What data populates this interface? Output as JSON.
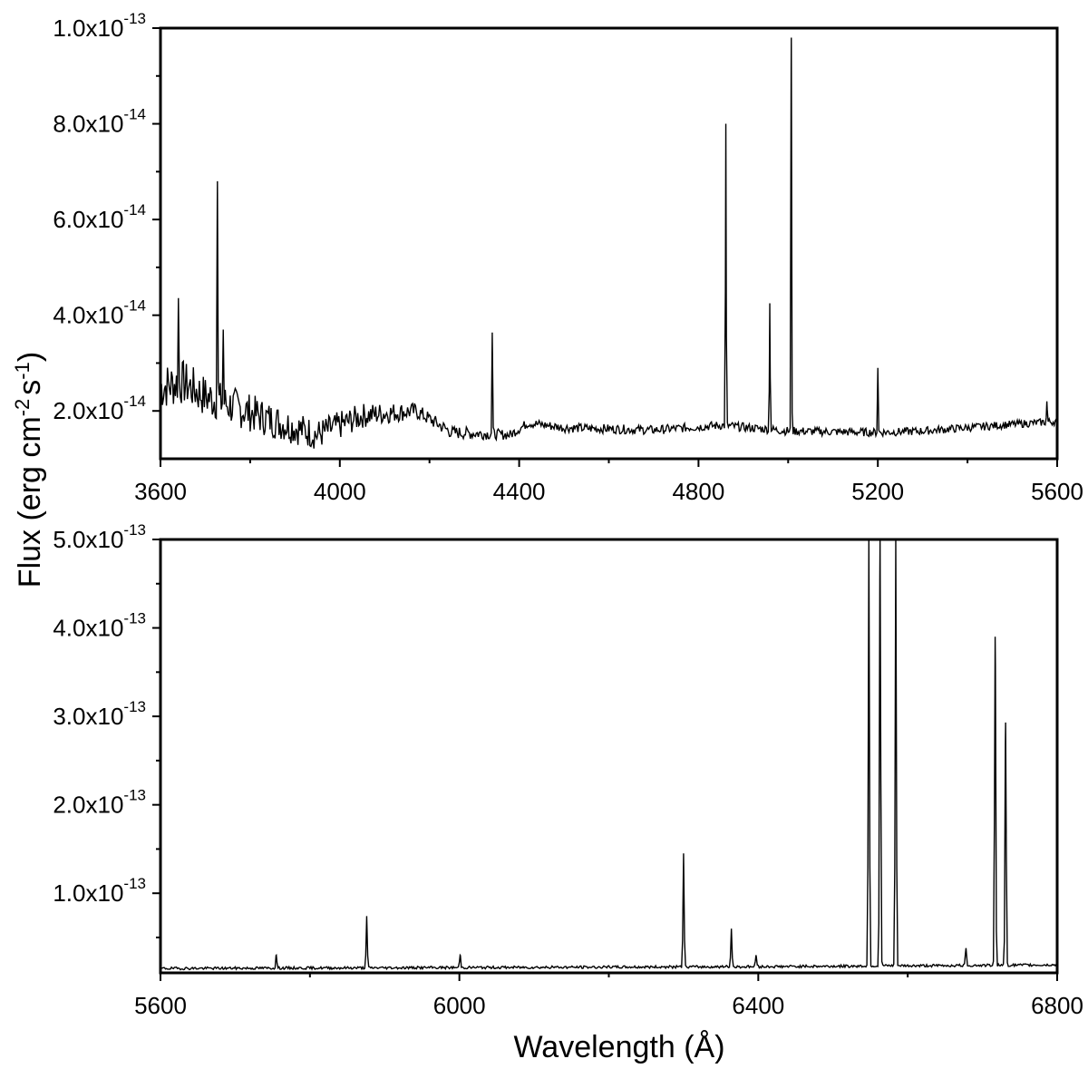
{
  "figure": {
    "ylabel_main": "Flux (erg cm",
    "ylabel_exp1": "-2",
    "ylabel_mid": "s",
    "ylabel_exp2": "-1",
    "ylabel_end": ")",
    "xlabel": "Wavelength (Å)"
  },
  "chart_data": [
    {
      "type": "line",
      "panel": "top",
      "xlabel": "",
      "ylabel": "Flux (erg cm-2 s-1)",
      "xlim": [
        3600,
        5600
      ],
      "ylim": [
        1e-14,
        1e-13
      ],
      "grid": false,
      "xticks": [
        {
          "value": 3600,
          "label": "3600"
        },
        {
          "value": 4000,
          "label": "4000"
        },
        {
          "value": 4400,
          "label": "4400"
        },
        {
          "value": 4800,
          "label": "4800"
        },
        {
          "value": 5200,
          "label": "5200"
        },
        {
          "value": 5600,
          "label": "5600"
        }
      ],
      "yticks": [
        {
          "value": 2e-14,
          "mantissa": "2.0x10",
          "exponent": "-14"
        },
        {
          "value": 4e-14,
          "mantissa": "4.0x10",
          "exponent": "-14"
        },
        {
          "value": 6e-14,
          "mantissa": "6.0x10",
          "exponent": "-14"
        },
        {
          "value": 8e-14,
          "mantissa": "8.0x10",
          "exponent": "-14"
        },
        {
          "value": 1e-13,
          "mantissa": "1.0x10",
          "exponent": "-13"
        }
      ],
      "continuum": [
        [
          3600,
          2.5e-14
        ],
        [
          3650,
          2.6e-14
        ],
        [
          3700,
          2.3e-14
        ],
        [
          3760,
          2.1e-14
        ],
        [
          3850,
          1.8e-14
        ],
        [
          3950,
          1.5e-14
        ],
        [
          4050,
          1.9e-14
        ],
        [
          4100,
          1.95e-14
        ],
        [
          4170,
          2e-14
        ],
        [
          4250,
          1.55e-14
        ],
        [
          4380,
          1.5e-14
        ],
        [
          4420,
          1.75e-14
        ],
        [
          4500,
          1.65e-14
        ],
        [
          4700,
          1.6e-14
        ],
        [
          4850,
          1.7e-14
        ],
        [
          5000,
          1.58e-14
        ],
        [
          5200,
          1.55e-14
        ],
        [
          5300,
          1.58e-14
        ],
        [
          5400,
          1.65e-14
        ],
        [
          5500,
          1.72e-14
        ],
        [
          5600,
          1.78e-14
        ]
      ],
      "noise": [
        [
          3600,
          5e-15
        ],
        [
          3800,
          4e-15
        ],
        [
          4000,
          3e-15
        ],
        [
          4200,
          1.5e-15
        ],
        [
          4400,
          1e-15
        ],
        [
          5600,
          8e-16
        ]
      ],
      "lines": [
        {
          "x": 3640,
          "peak": 4.3e-14
        },
        {
          "x": 3727,
          "peak": 6.8e-14
        },
        {
          "x": 3740,
          "peak": 3.7e-14
        },
        {
          "x": 4340,
          "peak": 3.6e-14
        },
        {
          "x": 4861,
          "peak": 8e-14
        },
        {
          "x": 4959,
          "peak": 4.25e-14
        },
        {
          "x": 5007,
          "peak": 9.8e-14
        },
        {
          "x": 5200,
          "peak": 2.9e-14
        },
        {
          "x": 5577,
          "peak": 2.2e-14
        }
      ]
    },
    {
      "type": "line",
      "panel": "bottom",
      "xlabel": "Wavelength (Å)",
      "ylabel": "Flux (erg cm-2 s-1)",
      "xlim": [
        5600,
        6800
      ],
      "ylim": [
        1e-14,
        5e-13
      ],
      "grid": false,
      "xticks": [
        {
          "value": 5600,
          "label": "5600"
        },
        {
          "value": 6000,
          "label": "6000"
        },
        {
          "value": 6400,
          "label": "6400"
        },
        {
          "value": 6800,
          "label": "6800"
        }
      ],
      "yticks": [
        {
          "value": 1e-13,
          "mantissa": "1.0x10",
          "exponent": "-13"
        },
        {
          "value": 2e-13,
          "mantissa": "2.0x10",
          "exponent": "-13"
        },
        {
          "value": 3e-13,
          "mantissa": "3.0x10",
          "exponent": "-13"
        },
        {
          "value": 4e-13,
          "mantissa": "4.0x10",
          "exponent": "-13"
        },
        {
          "value": 5e-13,
          "mantissa": "5.0x10",
          "exponent": "-13"
        }
      ],
      "continuum": [
        [
          5600,
          1.5e-14
        ],
        [
          6000,
          1.6e-14
        ],
        [
          6400,
          1.7e-14
        ],
        [
          6800,
          1.9e-14
        ]
      ],
      "noise": [
        [
          5600,
          1.5e-15
        ],
        [
          6800,
          1.5e-15
        ]
      ],
      "lines": [
        {
          "x": 5755,
          "peak": 3e-14
        },
        {
          "x": 5876,
          "peak": 7.3e-14
        },
        {
          "x": 6001,
          "peak": 3e-14
        },
        {
          "x": 6300,
          "peak": 1.45e-13
        },
        {
          "x": 6364,
          "peak": 6e-14
        },
        {
          "x": 6397,
          "peak": 3e-14
        },
        {
          "x": 6548,
          "peak": 5e-13
        },
        {
          "x": 6563,
          "peak": 5e-13
        },
        {
          "x": 6584,
          "peak": 5e-13
        },
        {
          "x": 6678,
          "peak": 3.8e-14
        },
        {
          "x": 6717,
          "peak": 3.9e-13
        },
        {
          "x": 6731,
          "peak": 2.93e-13
        }
      ]
    }
  ]
}
